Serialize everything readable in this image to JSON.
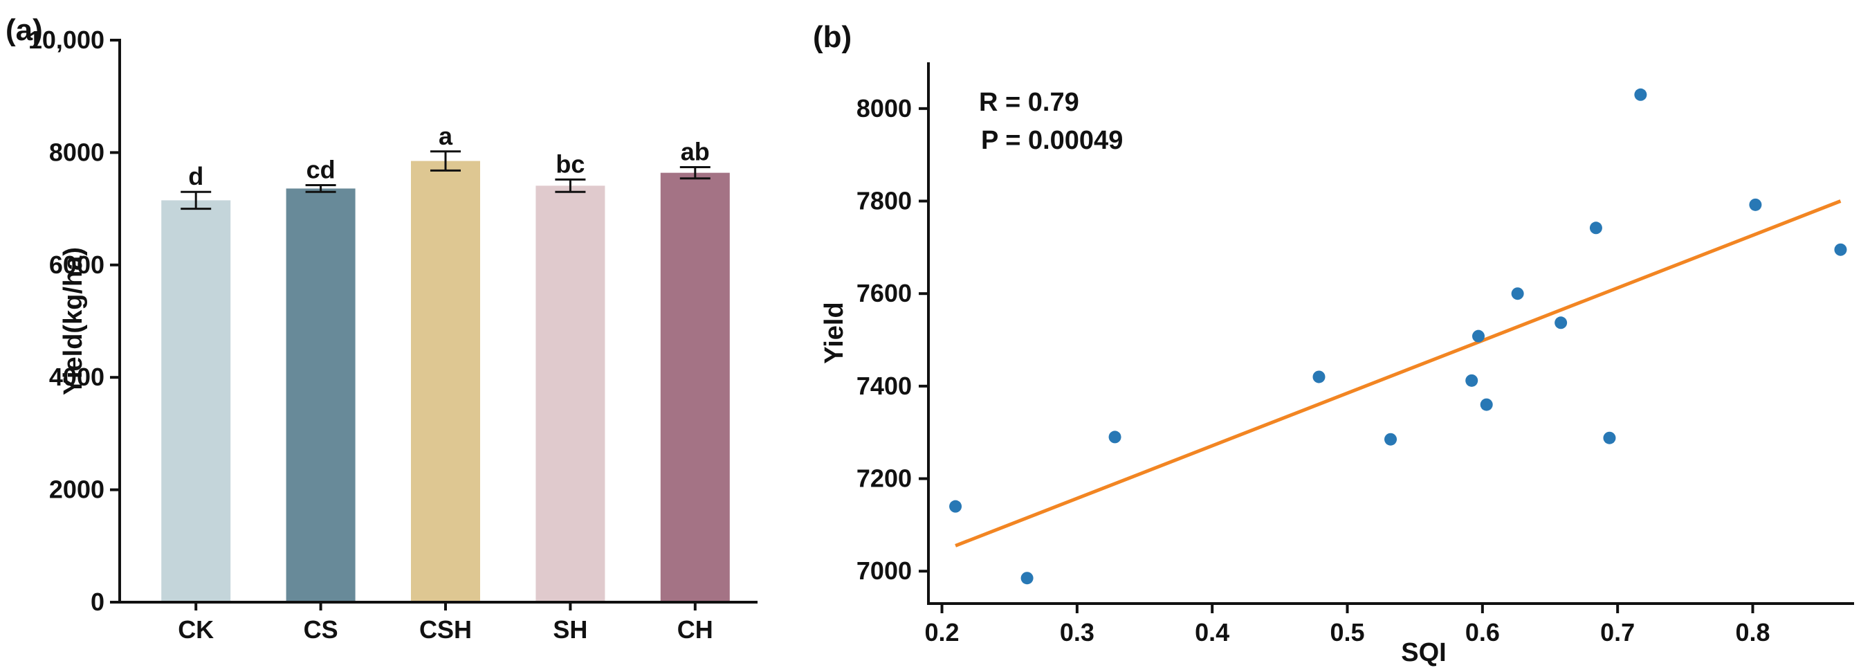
{
  "chart_data": [
    {
      "panel": "(a)",
      "type": "bar",
      "title": "",
      "xlabel": "",
      "ylabel": "Yield(kg/ha)",
      "ylim": [
        0,
        10000
      ],
      "yticks": [
        0,
        2000,
        4000,
        6000,
        8000,
        10000
      ],
      "ytick_labels": [
        "0",
        "2000",
        "4000",
        "6000",
        "8000",
        "10,000"
      ],
      "grid": false,
      "categories": [
        "CK",
        "CS",
        "CSH",
        "SH",
        "CH"
      ],
      "values": [
        7150,
        7360,
        7850,
        7410,
        7640
      ],
      "errors": [
        150,
        60,
        170,
        110,
        100
      ],
      "letters": [
        "d",
        "cd",
        "a",
        "bc",
        "ab"
      ],
      "colors": [
        "#c4d5da",
        "#688a99",
        "#dec792",
        "#e0cacd",
        "#a47385"
      ]
    },
    {
      "panel": "(b)",
      "type": "scatter",
      "title": "",
      "xlabel": "SQI",
      "ylabel": "Yield",
      "xlim": [
        0.19,
        0.875
      ],
      "ylim": [
        6930,
        8100
      ],
      "xticks": [
        0.2,
        0.3,
        0.4,
        0.5,
        0.6,
        0.7,
        0.8
      ],
      "yticks": [
        7000,
        7200,
        7400,
        7600,
        7800,
        8000
      ],
      "grid": false,
      "point_color": "#2878b5",
      "line_color": "#f28522",
      "x": [
        0.21,
        0.263,
        0.328,
        0.479,
        0.532,
        0.592,
        0.597,
        0.603,
        0.626,
        0.658,
        0.684,
        0.694,
        0.717,
        0.802,
        0.865
      ],
      "y": [
        7140,
        6985,
        7290,
        7420,
        7285,
        7412,
        7508,
        7360,
        7600,
        7537,
        7742,
        7288,
        8030,
        7792,
        7695
      ],
      "fit_line": {
        "x": [
          0.21,
          0.865
        ],
        "y": [
          7055,
          7800
        ]
      },
      "annotations": [
        "R = 0.79",
        "P = 0.00049"
      ]
    }
  ]
}
